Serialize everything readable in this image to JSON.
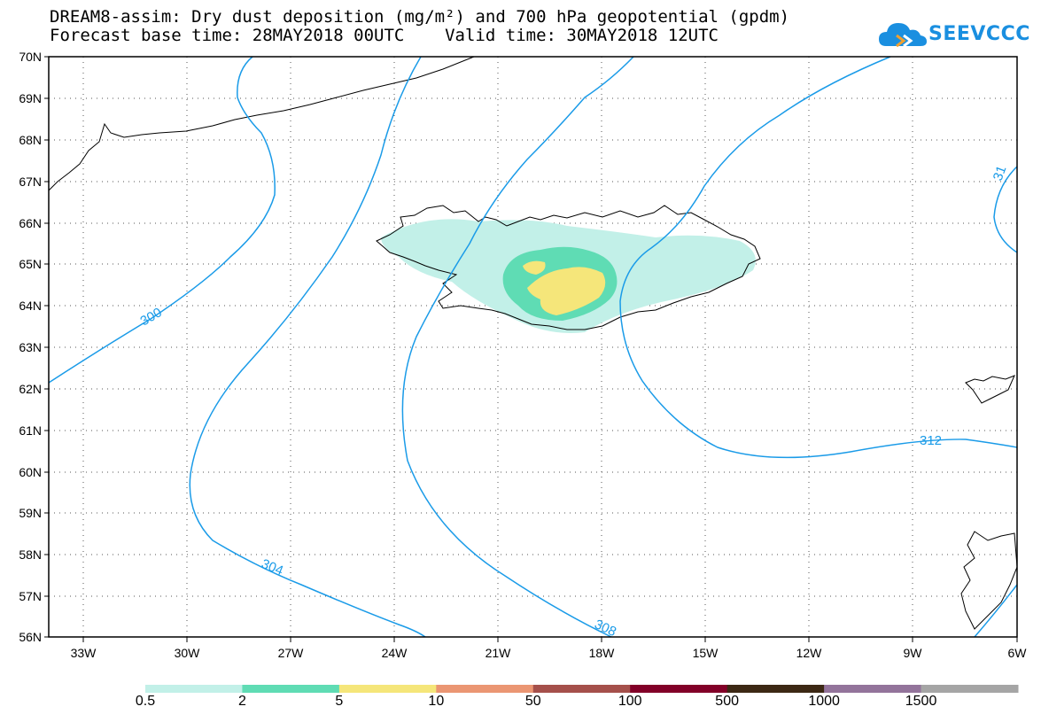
{
  "title_line1": "DREAM8-assim: Dry dust deposition (mg/m²) and 700 hPa geopotential (gpdm)",
  "title_line2": "Forecast base time: 28MAY2018 00UTC    Valid time: 30MAY2018 12UTC",
  "logo_text": "SEEVCCC",
  "lat_labels": [
    "70N",
    "69N",
    "68N",
    "67N",
    "66N",
    "65N",
    "64N",
    "63N",
    "62N",
    "61N",
    "60N",
    "59N",
    "58N",
    "57N",
    "56N"
  ],
  "lon_labels": [
    "33W",
    "30W",
    "27W",
    "24W",
    "21W",
    "18W",
    "15W",
    "12W",
    "9W",
    "6W"
  ],
  "contours": {
    "c300": "300",
    "c304": "304",
    "c308": "308",
    "c312": "312",
    "c31": "31"
  },
  "colorbar": {
    "labels": [
      "0.5",
      "2",
      "5",
      "10",
      "50",
      "100",
      "500",
      "1000",
      "1500"
    ],
    "colors": [
      "#c2f0e8",
      "#5fdcb4",
      "#f5e67a",
      "#eb9673",
      "#a5504b",
      "#820028",
      "#3c2814",
      "#93749b",
      "#a5a5a5"
    ]
  },
  "colors": {
    "contour": "#1a9be8",
    "dust_low": "#c2f0e8",
    "dust_mid": "#5fdcb4",
    "dust_high": "#f5e67a"
  }
}
